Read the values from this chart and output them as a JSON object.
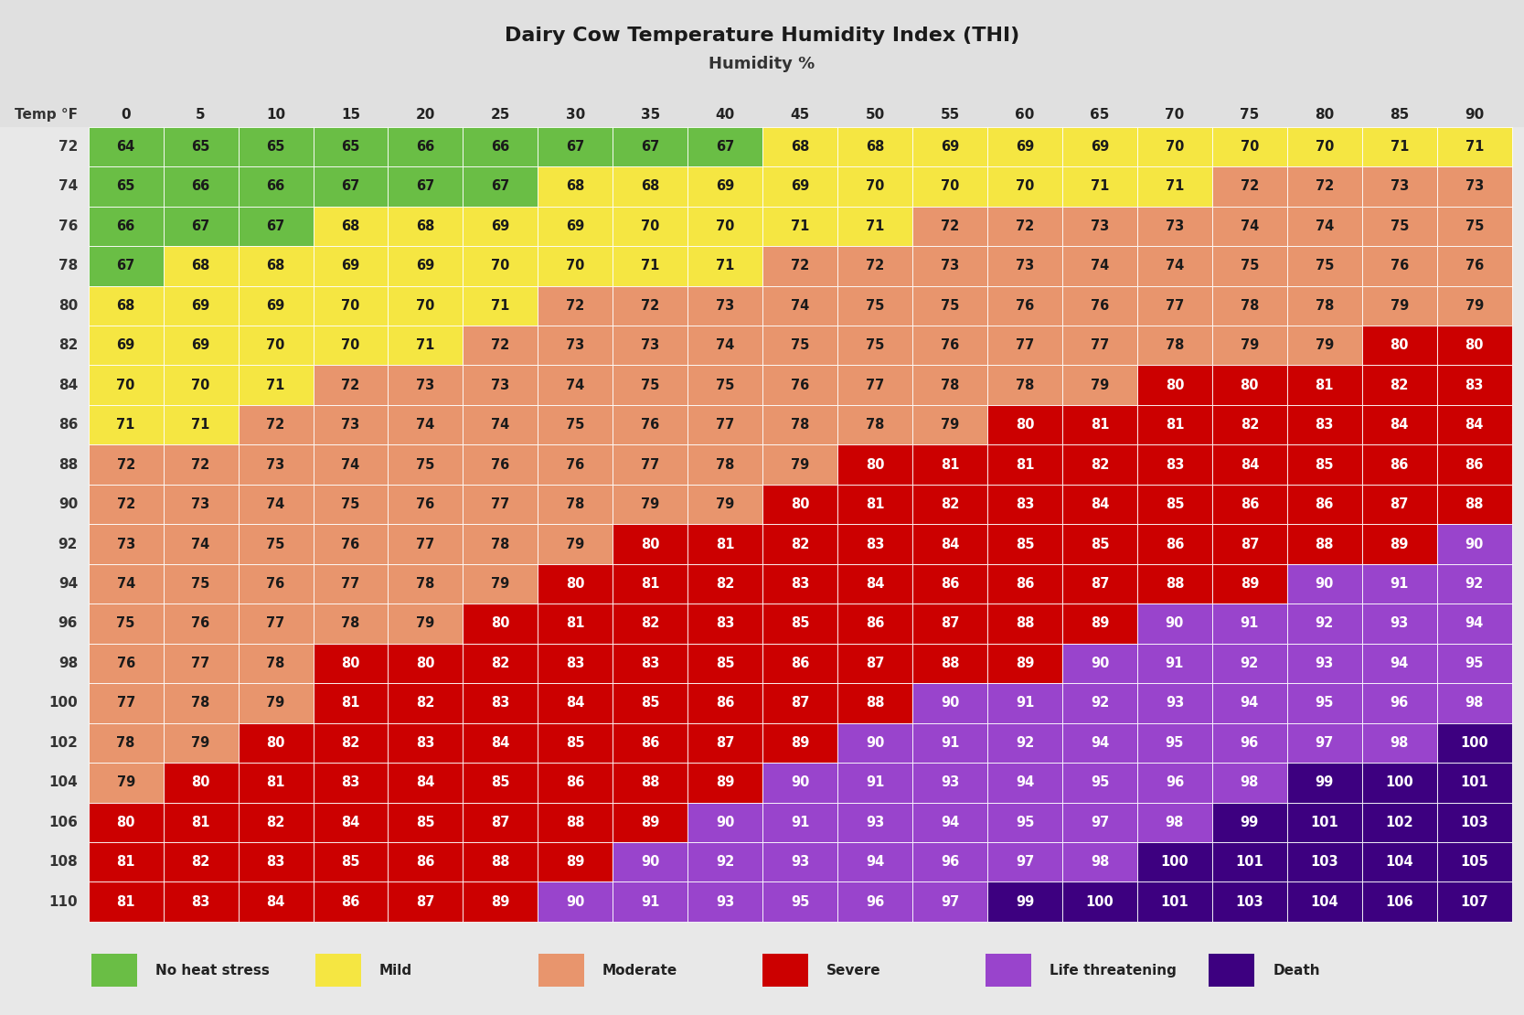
{
  "title": "Dairy Cow Temperature Humidity Index (THI)",
  "subtitle": "Humidity %",
  "row_label": "Temp °F",
  "temps": [
    72,
    74,
    76,
    78,
    80,
    82,
    84,
    86,
    88,
    90,
    92,
    94,
    96,
    98,
    100,
    102,
    104,
    106,
    108,
    110
  ],
  "humidities": [
    0,
    5,
    10,
    15,
    20,
    25,
    30,
    35,
    40,
    45,
    50,
    55,
    60,
    65,
    70,
    75,
    80,
    85,
    90
  ],
  "thi_values": [
    [
      64,
      65,
      65,
      65,
      66,
      66,
      67,
      67,
      67,
      68,
      68,
      69,
      69,
      69,
      70,
      70,
      70,
      71,
      71
    ],
    [
      65,
      66,
      66,
      67,
      67,
      67,
      68,
      68,
      69,
      69,
      70,
      70,
      70,
      71,
      71,
      72,
      72,
      73,
      73
    ],
    [
      66,
      67,
      67,
      68,
      68,
      69,
      69,
      70,
      70,
      71,
      71,
      72,
      72,
      73,
      73,
      74,
      74,
      75,
      75
    ],
    [
      67,
      68,
      68,
      69,
      69,
      70,
      70,
      71,
      71,
      72,
      72,
      73,
      73,
      74,
      74,
      75,
      75,
      76,
      76
    ],
    [
      68,
      69,
      69,
      70,
      70,
      71,
      72,
      72,
      73,
      74,
      75,
      75,
      76,
      76,
      77,
      78,
      78,
      79,
      79
    ],
    [
      69,
      69,
      70,
      70,
      71,
      72,
      73,
      73,
      74,
      75,
      75,
      76,
      77,
      77,
      78,
      79,
      79,
      80,
      80
    ],
    [
      70,
      70,
      71,
      72,
      73,
      73,
      74,
      75,
      75,
      76,
      77,
      78,
      78,
      79,
      80,
      80,
      81,
      82,
      83
    ],
    [
      71,
      71,
      72,
      73,
      74,
      74,
      75,
      76,
      77,
      78,
      78,
      79,
      80,
      81,
      81,
      82,
      83,
      84,
      84
    ],
    [
      72,
      72,
      73,
      74,
      75,
      76,
      76,
      77,
      78,
      79,
      80,
      81,
      81,
      82,
      83,
      84,
      85,
      86,
      86
    ],
    [
      72,
      73,
      74,
      75,
      76,
      77,
      78,
      79,
      79,
      80,
      81,
      82,
      83,
      84,
      85,
      86,
      86,
      87,
      88
    ],
    [
      73,
      74,
      75,
      76,
      77,
      78,
      79,
      80,
      81,
      82,
      83,
      84,
      85,
      85,
      86,
      87,
      88,
      89,
      90
    ],
    [
      74,
      75,
      76,
      77,
      78,
      79,
      80,
      81,
      82,
      83,
      84,
      86,
      86,
      87,
      88,
      89,
      90,
      91,
      92
    ],
    [
      75,
      76,
      77,
      78,
      79,
      80,
      81,
      82,
      83,
      85,
      86,
      87,
      88,
      89,
      90,
      91,
      92,
      93,
      94
    ],
    [
      76,
      77,
      78,
      80,
      80,
      82,
      83,
      83,
      85,
      86,
      87,
      88,
      89,
      90,
      91,
      92,
      93,
      94,
      95
    ],
    [
      77,
      78,
      79,
      81,
      82,
      83,
      84,
      85,
      86,
      87,
      88,
      90,
      91,
      92,
      93,
      94,
      95,
      96,
      98
    ],
    [
      78,
      79,
      80,
      82,
      83,
      84,
      85,
      86,
      87,
      89,
      90,
      91,
      92,
      94,
      95,
      96,
      97,
      98,
      100
    ],
    [
      79,
      80,
      81,
      83,
      84,
      85,
      86,
      88,
      89,
      90,
      91,
      93,
      94,
      95,
      96,
      98,
      99,
      100,
      101
    ],
    [
      80,
      81,
      82,
      84,
      85,
      87,
      88,
      89,
      90,
      91,
      93,
      94,
      95,
      97,
      98,
      99,
      101,
      102,
      103
    ],
    [
      81,
      82,
      83,
      85,
      86,
      88,
      89,
      90,
      92,
      93,
      94,
      96,
      97,
      98,
      100,
      101,
      103,
      104,
      105
    ],
    [
      81,
      83,
      84,
      86,
      87,
      89,
      90,
      91,
      93,
      95,
      96,
      97,
      99,
      100,
      101,
      103,
      104,
      106,
      107
    ]
  ],
  "categories": {
    "no_heat_stress": {
      "color": "#6abe45",
      "label": "No heat stress"
    },
    "mild": {
      "color": "#f5e642",
      "label": "Mild"
    },
    "moderate": {
      "color": "#e8956d",
      "label": "Moderate"
    },
    "severe": {
      "color": "#cc0000",
      "label": "Severe"
    },
    "life_threatening": {
      "color": "#9944cc",
      "label": "Life threatening"
    },
    "death": {
      "color": "#3d0080",
      "label": "Death"
    }
  },
  "bg_color": "#e8e8e8",
  "header_bg": "#e0e0e0",
  "cell_text_dark": "#1a1a1a",
  "cell_text_light": "#ffffff"
}
